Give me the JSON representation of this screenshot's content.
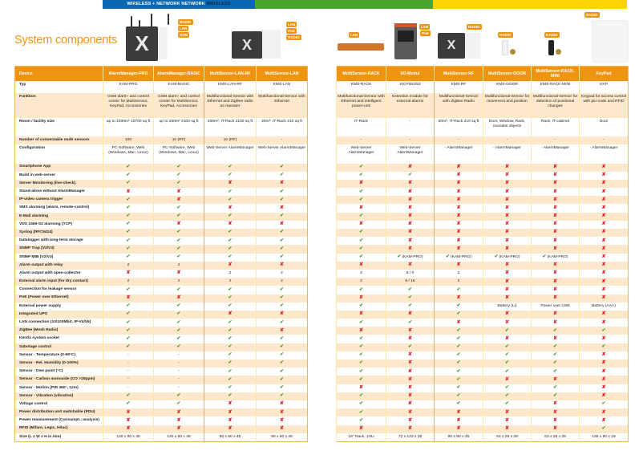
{
  "banner": {
    "text_main": "WIRELESS + NETWORK NETWORK ",
    "text_dark": "WIRELESS",
    "colors": {
      "blue": "#0b67b2",
      "green": "#4ba42e",
      "yellow": "#ffd400"
    }
  },
  "title": "System components",
  "accent_color": "#ef9411",
  "products": {
    "am_pro": {
      "tags": [
        "RADIO",
        "LAN",
        "GSM"
      ]
    },
    "lan_rf": {
      "tags": [
        "LAN",
        "PoE",
        "RADIO"
      ]
    },
    "rack": {
      "tags": [
        "LAN"
      ]
    },
    "io": {
      "tags": [
        "LAN",
        "PoE"
      ]
    },
    "rf": {
      "tags": [
        "RADIO"
      ]
    },
    "door": {
      "tags": [
        "RADIO"
      ]
    },
    "mini": {
      "tags": [
        "RADIO"
      ]
    },
    "keypad": {
      "tags": [
        "RADIO"
      ]
    }
  },
  "table": {
    "device_label": "Device",
    "left_devices": [
      "AlarmManager-PRO",
      "AlarmManager-BASIC",
      "MultiSensor-LAN-RF",
      "MultiSensor-LAN"
    ],
    "right_devices": [
      "MultiSensor-RACK",
      "I/O-Modul",
      "MultiSensor-RF",
      "MultiSensor-DOOR",
      "MultiSensor-RACK-MINI",
      "KeyPad"
    ],
    "rows": [
      {
        "label": "Typ",
        "values": [
          "KAM-PRO",
          "KAM-BASIC",
          "KMS-LAN-RF",
          "KMS-LAN",
          "KMS-RACK",
          "KIO7052/53",
          "KMS-RF",
          "KMS-DOOR",
          "KMS-RACK-MINI",
          "KKP"
        ]
      },
      {
        "label": "Funktion",
        "values": [
          "GSM alarm- and control center for MultiSensor, KeyPad, Accessories",
          "GSM alarm- and control center for MultiSensor, KeyPad, Accessories",
          "Multifunctional-Sensor with Ethernet and ZigBee radio as repeater",
          "Multifunctional-Sensor with Ethernet",
          "Multifunctional-Sensor with Ethernet and intelligent power-unit",
          "Extention module for external alarms",
          "Multifunctional-Sensor with ZigBee Radio",
          "Multifunctional-Sensor for movement and position",
          "Multifunctional-Sensor for detection of positional changes",
          "Keypad for access control with pin-code and RFID"
        ]
      },
      {
        "label": "Room / facility size",
        "values": [
          "up to 1000m² 10700 sq ft",
          "up to 200m² 2100 sq ft",
          "200m², IT-Rack 2100 sq ft",
          "20m², IT-Rack 210 sq ft",
          "IT-Rack",
          "-",
          "20m², IT-Rack 210 sq ft",
          "Door, Window, Rack, movable objects",
          "Rack, IT-cabinet",
          "Door"
        ]
      },
      {
        "label": "Number of connectable multi sensors",
        "values": [
          "100",
          "10 (RF)",
          "10 (RF)",
          "-",
          "-",
          "-",
          "-",
          "-",
          "-",
          "-"
        ]
      },
      {
        "label": "Configuration",
        "values": [
          "PC-Software, Web (Windows, Mac, Linux)",
          "PC-Software, Web (Windows, Mac, Linux)",
          "Web-Server AlarmManager",
          "Web-Server AlarmManager",
          "Web-Server AlarmManager",
          "Web-Server AlarmManager",
          "- AlarmManager",
          "- AlarmManager",
          "- AlarmManager",
          "- AlarmManager"
        ]
      },
      {
        "label": "Smartphone App",
        "values": [
          "yes",
          "yes",
          "yes",
          "yes",
          "yes",
          "no",
          "no",
          "no",
          "no",
          "no"
        ]
      },
      {
        "label": "Build in web-server",
        "values": [
          "yes",
          "yes",
          "yes",
          "yes",
          "yes",
          "yes",
          "no",
          "no",
          "no",
          "no"
        ]
      },
      {
        "label": "Server Monitoring  (live-check)",
        "values": [
          "yes",
          "yes",
          "no",
          "no",
          "no",
          "no",
          "no",
          "no",
          "no",
          "no"
        ]
      },
      {
        "label": "Stand-alone without AlarmManager",
        "values": [
          "no",
          "no",
          "yes",
          "yes",
          "yes",
          "no",
          "no",
          "no",
          "no",
          "no"
        ]
      },
      {
        "label": "IP-video camera trigger",
        "values": [
          "yes",
          "no",
          "yes",
          "yes",
          "yes",
          "no",
          "no",
          "no",
          "no",
          "no"
        ]
      },
      {
        "label": "SMS alarming (alarm, remote-control)",
        "values": [
          "yes",
          "yes",
          "no",
          "no",
          "no",
          "no",
          "no",
          "no",
          "no",
          "no"
        ]
      },
      {
        "label": "E-Mail alarming",
        "values": [
          "yes",
          "yes",
          "yes",
          "yes",
          "yes",
          "no",
          "no",
          "no",
          "no",
          "no"
        ]
      },
      {
        "label": "VDS 2465-S2 alarming (TCP)",
        "values": [
          "yes",
          "no",
          "no",
          "no",
          "no",
          "no",
          "no",
          "no",
          "no",
          "no"
        ]
      },
      {
        "label": "Syslog (RFC5424)",
        "values": [
          "yes",
          "yes",
          "yes",
          "yes",
          "yes",
          "no",
          "no",
          "no",
          "no",
          "no"
        ]
      },
      {
        "label": "Datalogger with long-term storage",
        "values": [
          "yes",
          "yes",
          "yes",
          "yes",
          "yes",
          "no",
          "no",
          "no",
          "no",
          "no"
        ]
      },
      {
        "label": "SNMP Trap (V2/V3)",
        "values": [
          "yes",
          "yes",
          "yes",
          "yes",
          "yes",
          "no",
          "no",
          "no",
          "no",
          "no"
        ]
      },
      {
        "label": "SNMP MIB (V2/V3)",
        "values": [
          "yes",
          "yes",
          "yes",
          "yes",
          "yes",
          {
            "icon": "yes",
            "text": "(KAM-PRO)"
          },
          {
            "icon": "yes",
            "text": "(KAM-PRO)"
          },
          {
            "icon": "yes",
            "text": "(KAM-PRO)"
          },
          {
            "icon": "yes",
            "text": "(KAM-PRO)"
          },
          "no"
        ]
      },
      {
        "label": "Alarm output with relay",
        "values": [
          "2",
          "2",
          "no",
          "no",
          "no",
          "no",
          "no",
          "no",
          "no",
          "no"
        ]
      },
      {
        "label": "Alarm output with open-collector",
        "values": [
          "no",
          "no",
          "2",
          "2",
          "2",
          "8 / 0",
          "2",
          "no",
          "no",
          "no"
        ]
      },
      {
        "label": "External alarm input (for dry contact)",
        "values": [
          "2",
          "2",
          "2",
          "2",
          "2",
          "8 / 16",
          "2",
          "no",
          "no",
          "no"
        ]
      },
      {
        "label": "Connection for leakage sensor",
        "values": [
          "yes",
          "yes",
          "yes",
          "yes",
          "yes",
          "yes",
          "yes",
          "no",
          "no",
          "no"
        ]
      },
      {
        "label": "PoE (Power over Ethernet)",
        "values": [
          "no",
          "no",
          "yes",
          "yes",
          "no",
          "yes",
          "no",
          "no",
          "no",
          "no"
        ]
      },
      {
        "label": "External power supply",
        "values": [
          "yes",
          "yes",
          "yes",
          "yes",
          "yes",
          "yes",
          "yes",
          "Battery (Li)",
          "Power over USB",
          "Battery (AAA)"
        ]
      },
      {
        "label": "Integrated UPS",
        "values": [
          "yes",
          "yes",
          "no",
          "no",
          "no",
          "no",
          "yes",
          "no",
          "no",
          "no"
        ]
      },
      {
        "label": "LAN connection (10/100Mbit, IP-V4/V6)",
        "values": [
          "yes",
          "yes",
          "yes",
          "yes",
          "yes",
          "yes",
          "no",
          "no",
          "no",
          "no"
        ]
      },
      {
        "label": "ZigBee (Mesh Radio)",
        "values": [
          "yes",
          "yes",
          "yes",
          "no",
          "no",
          "no",
          "yes",
          "yes",
          "yes",
          "yes"
        ]
      },
      {
        "label": "Kentix system socket",
        "values": [
          "yes",
          "yes",
          "yes",
          "yes",
          "yes",
          "no",
          "yes",
          "no",
          "no",
          "no"
        ]
      },
      {
        "label": "Sabotage control",
        "values": [
          "yes",
          "yes",
          "yes",
          "yes",
          "yes",
          "yes",
          "yes",
          "yes",
          "yes",
          "yes"
        ]
      },
      {
        "label": "Sensor - Temperature (0-99°C)",
        "values": [
          "-",
          "-",
          "yes",
          "yes",
          "yes",
          "no",
          "yes",
          "yes",
          "yes",
          "no"
        ]
      },
      {
        "label": "Sensor - Rel. Humidity (0-100%)",
        "values": [
          "-",
          "-",
          "yes",
          "yes",
          "yes",
          "no",
          "yes",
          "yes",
          "yes",
          "no"
        ]
      },
      {
        "label": "Sensor - Dew point (°C)",
        "values": [
          "-",
          "-",
          "yes",
          "yes",
          "yes",
          "no",
          "yes",
          "yes",
          "yes",
          "no"
        ]
      },
      {
        "label": "Sensor - Carbon monoxide (CO >20ppm)",
        "values": [
          "-",
          "-",
          "yes",
          "yes",
          "yes",
          "no",
          "yes",
          "no",
          "no",
          "no"
        ]
      },
      {
        "label": "Sensor - Motion (PIR 360°, 12m)",
        "values": [
          "-",
          "-",
          "yes",
          "yes",
          "no",
          "no",
          "yes",
          "yes",
          "yes",
          "no"
        ]
      },
      {
        "label": "Sensor - Vibration (vibration)",
        "values": [
          "yes",
          "yes",
          "yes",
          "yes",
          "yes",
          "no",
          "yes",
          "yes",
          "yes",
          "no"
        ]
      },
      {
        "label": "Voltage control",
        "values": [
          "yes",
          "yes",
          "no",
          "no",
          "yes",
          "no",
          "yes",
          "yes",
          "no",
          "yes"
        ]
      },
      {
        "label": "Power distribution unit switchable (PDU)",
        "values": [
          "no",
          "no",
          "no",
          "no",
          "yes",
          "no",
          "no",
          "no",
          "no",
          "no"
        ]
      },
      {
        "label": "Power measurement (Consumpt., analysis)",
        "values": [
          "no",
          "no",
          "no",
          "no",
          "yes",
          "no",
          "no",
          "no",
          "no",
          "no"
        ]
      },
      {
        "label": "RFID (Mifare, Legic, Hitac)",
        "values": [
          "no",
          "no",
          "no",
          "no",
          "no",
          "no",
          "no",
          "no",
          "no",
          "yes"
        ]
      },
      {
        "label": "Size (L x W x H in mm)",
        "values": [
          "130 x 90 x 45",
          "130 x 90 x 45",
          "90 x 90 x 45",
          "90 x 90 x 45",
          "19\" Rack, 1HU",
          "72 x 123 x 35",
          "90 x 90 x 45",
          "63 x 29 x 28",
          "63 x 29 x 28",
          "135 x 90 x 19"
        ]
      }
    ]
  }
}
